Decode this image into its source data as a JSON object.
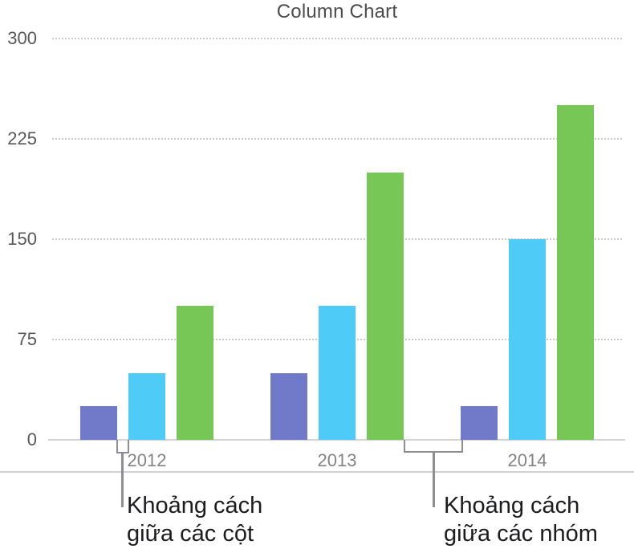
{
  "chart_data": {
    "type": "bar",
    "title": "Column Chart",
    "categories": [
      "2012",
      "2013",
      "2014"
    ],
    "series": [
      {
        "name": "series-purple",
        "color": "#707ac8",
        "values": [
          25,
          50,
          25
        ]
      },
      {
        "name": "series-blue",
        "color": "#4ecbf7",
        "values": [
          50,
          100,
          150
        ]
      },
      {
        "name": "series-green",
        "color": "#76c756",
        "values": [
          100,
          200,
          250
        ]
      }
    ],
    "xlabel": "",
    "ylabel": "",
    "ylim": [
      0,
      300
    ],
    "yticks": [
      300,
      225,
      150,
      75,
      0
    ],
    "grid": "horizontal-dotted",
    "legend_position": "none"
  },
  "annotations": {
    "column_gap": {
      "line1": "Khoảng cách",
      "line2": "giữa các cột"
    },
    "group_gap": {
      "line1": "Khoảng cách",
      "line2": "giữa các nhóm"
    }
  },
  "colors": {
    "series_purple": "#707ac8",
    "series_blue": "#4ecbf7",
    "series_green": "#76c756",
    "gridline": "#c9c9cb",
    "axis_line": "#d4d4d6",
    "separator": "#d2d2d4",
    "bracket": "#8e8e91",
    "title_text": "#4c4c4e",
    "y_tick_text": "#58585a",
    "x_tick_text": "#848487",
    "annotation_text": "#1c1c1e"
  }
}
